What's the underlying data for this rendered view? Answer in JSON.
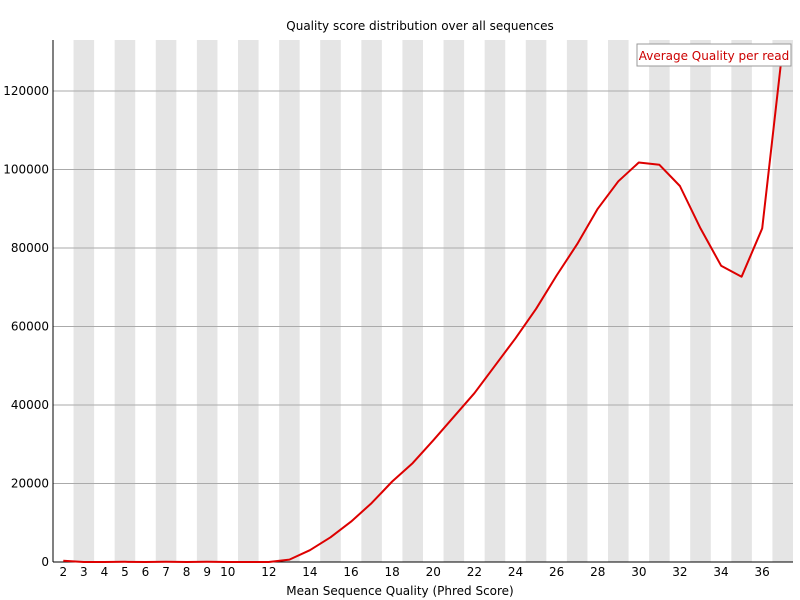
{
  "chart_data": {
    "type": "line",
    "title": "Quality score distribution over all sequences",
    "xlabel": "Mean Sequence Quality (Phred Score)",
    "ylabel": "",
    "x_range": [
      2,
      37
    ],
    "ylim": [
      0,
      133000
    ],
    "xticks": [
      2,
      3,
      4,
      5,
      6,
      7,
      8,
      9,
      10,
      12,
      14,
      16,
      18,
      20,
      22,
      24,
      26,
      28,
      30,
      32,
      34,
      36
    ],
    "yticks": [
      0,
      20000,
      40000,
      60000,
      80000,
      100000,
      120000
    ],
    "grid": "horizontal lines with alternating grey column bands",
    "legend": "top-right",
    "series": [
      {
        "name": "Average Quality per read",
        "color": "#dd0000",
        "x": [
          2,
          3,
          4,
          5,
          6,
          7,
          8,
          9,
          10,
          11,
          12,
          13,
          14,
          15,
          16,
          17,
          18,
          19,
          20,
          21,
          22,
          23,
          24,
          25,
          26,
          27,
          28,
          29,
          30,
          31,
          32,
          33,
          34,
          35,
          36,
          37
        ],
        "values": [
          300,
          0,
          0,
          50,
          0,
          50,
          0,
          50,
          0,
          0,
          0,
          600,
          3000,
          6300,
          10300,
          15000,
          20500,
          25200,
          31000,
          37000,
          43000,
          50000,
          57000,
          64500,
          73000,
          81000,
          90000,
          97000,
          101800,
          101200,
          95800,
          85000,
          75500,
          72700,
          85000,
          131000
        ]
      }
    ]
  }
}
